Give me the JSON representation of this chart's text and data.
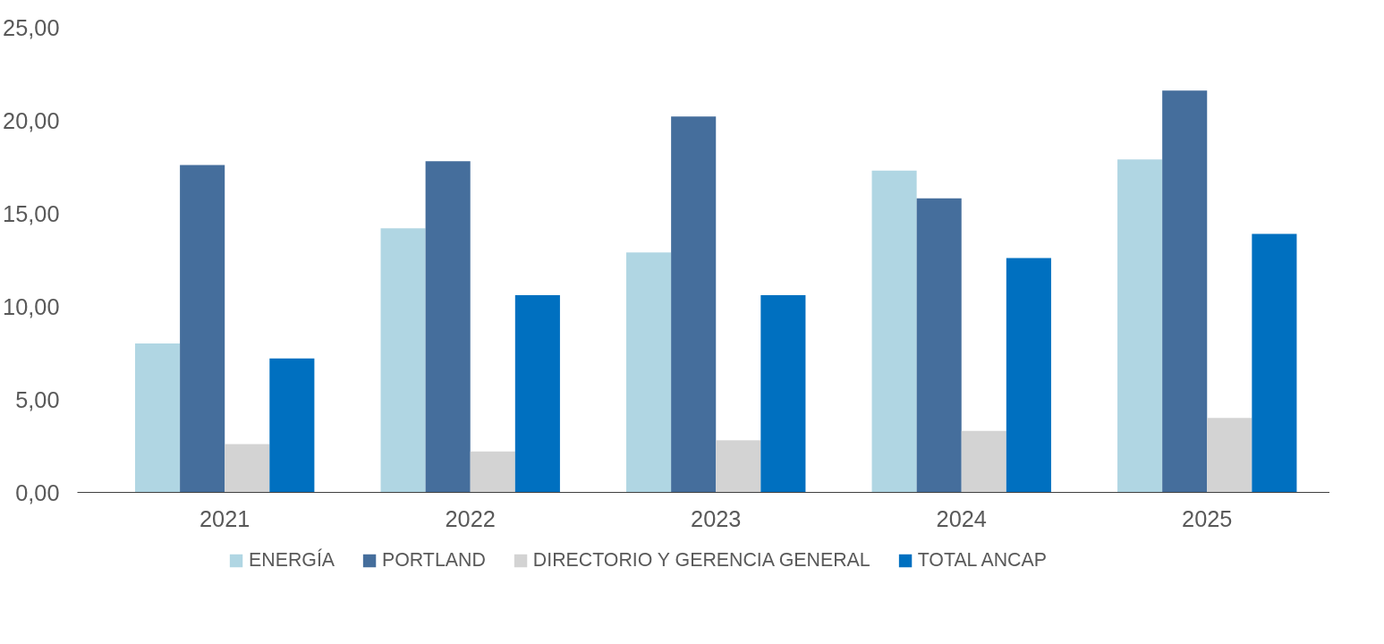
{
  "chart_data": {
    "type": "bar",
    "categories": [
      "2021",
      "2022",
      "2023",
      "2024",
      "2025"
    ],
    "series": [
      {
        "name": "ENERGÍA",
        "color": "#b0d6e3",
        "values": [
          8.0,
          14.2,
          12.9,
          17.3,
          17.9
        ]
      },
      {
        "name": "PORTLAND",
        "color": "#456e9c",
        "values": [
          17.6,
          17.8,
          20.2,
          15.8,
          21.6
        ]
      },
      {
        "name": "DIRECTORIO Y GERENCIA GENERAL",
        "color": "#d3d3d3",
        "values": [
          2.6,
          2.2,
          2.8,
          3.3,
          4.0
        ]
      },
      {
        "name": "TOTAL ANCAP",
        "color": "#0070c0",
        "values": [
          7.2,
          10.6,
          10.6,
          12.6,
          13.9
        ]
      }
    ],
    "ylim": [
      0,
      25
    ],
    "yticks": [
      {
        "value": 0,
        "label": "0,00"
      },
      {
        "value": 5,
        "label": "5,00"
      },
      {
        "value": 10,
        "label": "10,00"
      },
      {
        "value": 15,
        "label": "15,00"
      },
      {
        "value": 20,
        "label": "20,00"
      },
      {
        "value": 25,
        "label": "25,00"
      }
    ],
    "grid": false,
    "legend": "bottom"
  }
}
